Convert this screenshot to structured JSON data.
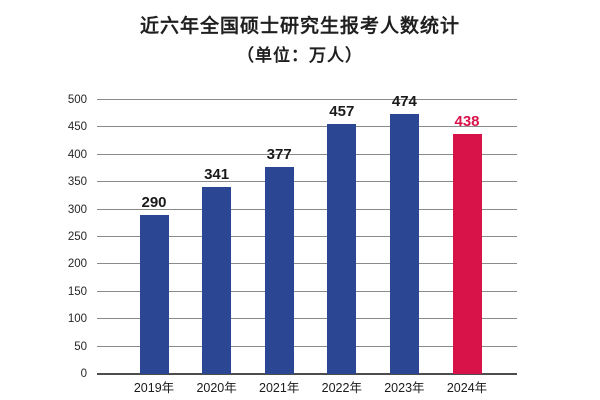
{
  "title": {
    "line1": "近六年全国硕士研究生报考人数统计",
    "line2": "（单位：万人）"
  },
  "colors": {
    "bar_blue": "#2b4794",
    "bar_red": "#d8134a",
    "value_label_default": "#1a1a1a",
    "value_label_highlight": "#d8134a",
    "gridline": "#8a8a8a",
    "axis_line": "#4d4d4d",
    "title_text": "#1f1f1f"
  },
  "chart_data": {
    "type": "bar",
    "title": "近六年全国硕士研究生报考人数统计",
    "subtitle": "（单位：万人）",
    "unit": "万人",
    "categories": [
      "2019年",
      "2020年",
      "2021年",
      "2022年",
      "2023年",
      "2024年"
    ],
    "values": [
      290,
      341,
      377,
      457,
      474,
      438
    ],
    "bar_colors": [
      "#2b4794",
      "#2b4794",
      "#2b4794",
      "#2b4794",
      "#2b4794",
      "#d8134a"
    ],
    "value_label_colors": [
      "#1a1a1a",
      "#1a1a1a",
      "#1a1a1a",
      "#1a1a1a",
      "#1a1a1a",
      "#d8134a"
    ],
    "xlabel": "",
    "ylabel": "",
    "ylim": [
      0,
      500
    ],
    "ytick_step": 50,
    "yticks": [
      0,
      50,
      100,
      150,
      200,
      250,
      300,
      350,
      400,
      450,
      500
    ],
    "grid": true,
    "legend": "none"
  }
}
